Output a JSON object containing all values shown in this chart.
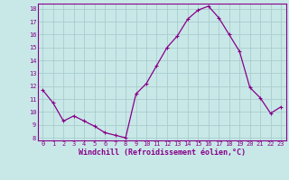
{
  "hours": [
    0,
    1,
    2,
    3,
    4,
    5,
    6,
    7,
    8,
    9,
    10,
    11,
    12,
    13,
    14,
    15,
    16,
    17,
    18,
    19,
    20,
    21,
    22,
    23
  ],
  "values": [
    11.7,
    10.7,
    9.3,
    9.7,
    9.3,
    8.9,
    8.4,
    8.2,
    8.0,
    11.4,
    12.2,
    13.6,
    15.0,
    15.9,
    17.2,
    17.9,
    18.2,
    17.3,
    16.0,
    14.7,
    11.9,
    11.1,
    9.9,
    10.4
  ],
  "line_color": "#880088",
  "marker": "+",
  "marker_size": 3,
  "marker_lw": 0.8,
  "xlabel": "Windchill (Refroidissement éolien,°C)",
  "xlabel_fontsize": 6.0,
  "bg_color": "#c8e8e8",
  "grid_color": "#aacccc",
  "tick_color": "#880088",
  "label_color": "#880088",
  "spine_color": "#880088",
  "ylim": [
    7.8,
    18.4
  ],
  "yticks": [
    8,
    9,
    10,
    11,
    12,
    13,
    14,
    15,
    16,
    17,
    18
  ],
  "xticks": [
    0,
    1,
    2,
    3,
    4,
    5,
    6,
    7,
    8,
    9,
    10,
    11,
    12,
    13,
    14,
    15,
    16,
    17,
    18,
    19,
    20,
    21,
    22,
    23
  ],
  "tick_fontsize": 5.0,
  "line_width": 0.9
}
